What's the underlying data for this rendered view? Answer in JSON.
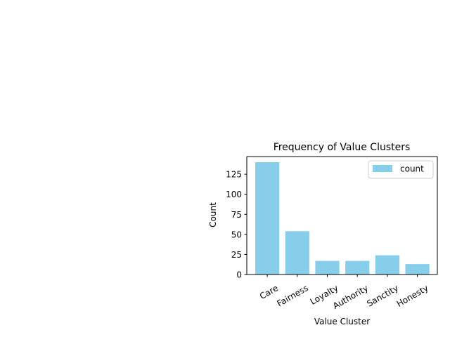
{
  "chart_data": {
    "type": "bar",
    "title": "Frequency of Value Clusters",
    "xlabel": "Value Cluster",
    "ylabel": "Count",
    "categories": [
      "Care",
      "Fairness",
      "Loyalty",
      "Authority",
      "Sanctity",
      "Honesty"
    ],
    "series": [
      {
        "name": "count",
        "values": [
          140,
          54,
          17,
          17,
          24,
          13
        ]
      }
    ],
    "ylim": [
      0,
      147
    ],
    "yticks": [
      "0",
      "25",
      "50",
      "75",
      "100",
      "125"
    ],
    "bar_color": "#87ceeb",
    "legend_position": "upper right",
    "grid": false
  }
}
